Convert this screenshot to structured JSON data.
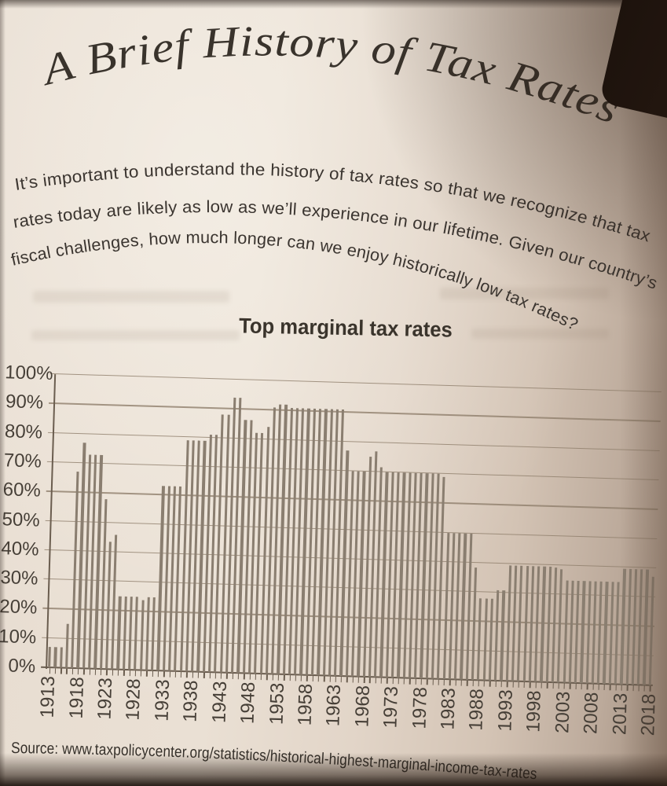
{
  "page": {
    "title": "A Brief History of Tax Rates",
    "intro_lines": [
      "It’s important to understand the history of tax rates so that we recognize that tax",
      "rates today are likely as low as we’ll experience in our lifetime. Given our country’s",
      "fiscal challenges, how much longer can we enjoy historically low tax rates?"
    ],
    "source": "Source: www.taxpolicycenter.org/statistics/historical-highest-marginal-income-tax-rates"
  },
  "chart_data": {
    "type": "bar",
    "title": "Top marginal tax rates",
    "xlabel": "",
    "ylabel": "",
    "ylim": [
      0,
      100
    ],
    "grid": "horizontal",
    "legend": "none",
    "years": [
      1913,
      1914,
      1915,
      1916,
      1917,
      1918,
      1919,
      1920,
      1921,
      1922,
      1923,
      1924,
      1925,
      1926,
      1927,
      1928,
      1929,
      1930,
      1931,
      1932,
      1933,
      1934,
      1935,
      1936,
      1937,
      1938,
      1939,
      1940,
      1941,
      1942,
      1943,
      1944,
      1945,
      1946,
      1947,
      1948,
      1949,
      1950,
      1951,
      1952,
      1953,
      1954,
      1955,
      1956,
      1957,
      1958,
      1959,
      1960,
      1961,
      1962,
      1963,
      1964,
      1965,
      1966,
      1967,
      1968,
      1969,
      1970,
      1971,
      1972,
      1973,
      1974,
      1975,
      1976,
      1977,
      1978,
      1979,
      1980,
      1981,
      1982,
      1983,
      1984,
      1985,
      1986,
      1987,
      1988,
      1989,
      1990,
      1991,
      1992,
      1993,
      1994,
      1995,
      1996,
      1997,
      1998,
      1999,
      2000,
      2001,
      2002,
      2003,
      2004,
      2005,
      2006,
      2007,
      2008,
      2009,
      2010,
      2011,
      2012,
      2013,
      2014,
      2015,
      2016,
      2017,
      2018
    ],
    "values": [
      7,
      7,
      7,
      15,
      67,
      77,
      73,
      73,
      73,
      58,
      43.5,
      46,
      25,
      25,
      25,
      25,
      24,
      25,
      25,
      63,
      63,
      63,
      63,
      79,
      79,
      79,
      79,
      81.1,
      81,
      88,
      88,
      94,
      94,
      86.45,
      86.45,
      82.13,
      82.13,
      84.36,
      91,
      92,
      92,
      91,
      91,
      91,
      91,
      91,
      91,
      91,
      91,
      91,
      91,
      77,
      70,
      70,
      70,
      75.25,
      77,
      71.75,
      70,
      70,
      70,
      70,
      70,
      70,
      70,
      70,
      70,
      70,
      69.13,
      50,
      50,
      50,
      50,
      50,
      38.5,
      28,
      28,
      28,
      31,
      31,
      39.6,
      39.6,
      39.6,
      39.6,
      39.6,
      39.6,
      39.6,
      39.6,
      39.1,
      38.6,
      35,
      35,
      35,
      35,
      35,
      35,
      35,
      35,
      35,
      35,
      39.6,
      39.6,
      39.6,
      39.6,
      39.6,
      37
    ],
    "xtick_labels": [
      "1913",
      "1918",
      "1923",
      "1928",
      "1933",
      "1938",
      "1943",
      "1948",
      "1953",
      "1958",
      "1963",
      "1968",
      "1973",
      "1978",
      "1983",
      "1988",
      "1993",
      "1998",
      "2003",
      "2008",
      "2013",
      "2018"
    ],
    "ytick_labels": [
      "0%",
      "10%",
      "20%",
      "30%",
      "40%",
      "50%",
      "60%",
      "70%",
      "80%",
      "90%",
      "100%"
    ]
  },
  "colors": {
    "page_background": "#e7dcd0",
    "bar": "#8a7e70",
    "gridline": "#8f7e6c",
    "axis": "#6a5d4f",
    "label_text": "#463f37",
    "body_text": "#3b3530",
    "title_text": "#39332c",
    "photo_shadow": "#241a12"
  }
}
